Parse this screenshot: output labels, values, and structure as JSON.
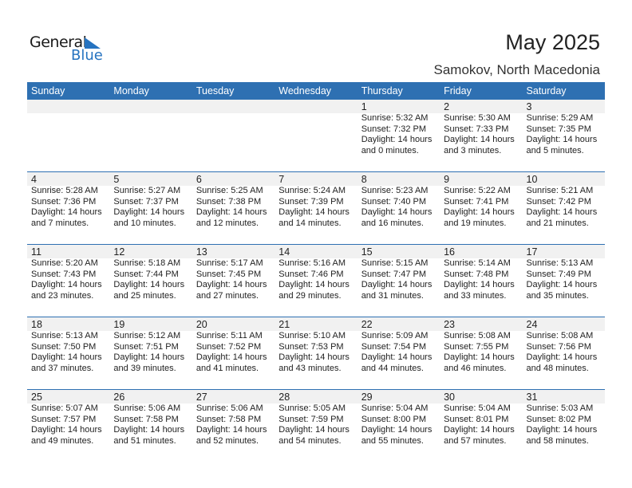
{
  "logo": {
    "general": "General",
    "blue": "Blue"
  },
  "header": {
    "title": "May 2025",
    "location": "Samokov, North Macedonia"
  },
  "colors": {
    "header_bg": "#2e70b2",
    "date_band": "#f1f1f1",
    "logo_blue": "#2673c0"
  },
  "weekdays": [
    "Sunday",
    "Monday",
    "Tuesday",
    "Wednesday",
    "Thursday",
    "Friday",
    "Saturday"
  ],
  "weeks": [
    [
      null,
      null,
      null,
      null,
      {
        "day": "1",
        "sunrise": "Sunrise: 5:32 AM",
        "sunset": "Sunset: 7:32 PM",
        "daylight": "Daylight: 14 hours",
        "minutes": "and 0 minutes."
      },
      {
        "day": "2",
        "sunrise": "Sunrise: 5:30 AM",
        "sunset": "Sunset: 7:33 PM",
        "daylight": "Daylight: 14 hours",
        "minutes": "and 3 minutes."
      },
      {
        "day": "3",
        "sunrise": "Sunrise: 5:29 AM",
        "sunset": "Sunset: 7:35 PM",
        "daylight": "Daylight: 14 hours",
        "minutes": "and 5 minutes."
      }
    ],
    [
      {
        "day": "4",
        "sunrise": "Sunrise: 5:28 AM",
        "sunset": "Sunset: 7:36 PM",
        "daylight": "Daylight: 14 hours",
        "minutes": "and 7 minutes."
      },
      {
        "day": "5",
        "sunrise": "Sunrise: 5:27 AM",
        "sunset": "Sunset: 7:37 PM",
        "daylight": "Daylight: 14 hours",
        "minutes": "and 10 minutes."
      },
      {
        "day": "6",
        "sunrise": "Sunrise: 5:25 AM",
        "sunset": "Sunset: 7:38 PM",
        "daylight": "Daylight: 14 hours",
        "minutes": "and 12 minutes."
      },
      {
        "day": "7",
        "sunrise": "Sunrise: 5:24 AM",
        "sunset": "Sunset: 7:39 PM",
        "daylight": "Daylight: 14 hours",
        "minutes": "and 14 minutes."
      },
      {
        "day": "8",
        "sunrise": "Sunrise: 5:23 AM",
        "sunset": "Sunset: 7:40 PM",
        "daylight": "Daylight: 14 hours",
        "minutes": "and 16 minutes."
      },
      {
        "day": "9",
        "sunrise": "Sunrise: 5:22 AM",
        "sunset": "Sunset: 7:41 PM",
        "daylight": "Daylight: 14 hours",
        "minutes": "and 19 minutes."
      },
      {
        "day": "10",
        "sunrise": "Sunrise: 5:21 AM",
        "sunset": "Sunset: 7:42 PM",
        "daylight": "Daylight: 14 hours",
        "minutes": "and 21 minutes."
      }
    ],
    [
      {
        "day": "11",
        "sunrise": "Sunrise: 5:20 AM",
        "sunset": "Sunset: 7:43 PM",
        "daylight": "Daylight: 14 hours",
        "minutes": "and 23 minutes."
      },
      {
        "day": "12",
        "sunrise": "Sunrise: 5:18 AM",
        "sunset": "Sunset: 7:44 PM",
        "daylight": "Daylight: 14 hours",
        "minutes": "and 25 minutes."
      },
      {
        "day": "13",
        "sunrise": "Sunrise: 5:17 AM",
        "sunset": "Sunset: 7:45 PM",
        "daylight": "Daylight: 14 hours",
        "minutes": "and 27 minutes."
      },
      {
        "day": "14",
        "sunrise": "Sunrise: 5:16 AM",
        "sunset": "Sunset: 7:46 PM",
        "daylight": "Daylight: 14 hours",
        "minutes": "and 29 minutes."
      },
      {
        "day": "15",
        "sunrise": "Sunrise: 5:15 AM",
        "sunset": "Sunset: 7:47 PM",
        "daylight": "Daylight: 14 hours",
        "minutes": "and 31 minutes."
      },
      {
        "day": "16",
        "sunrise": "Sunrise: 5:14 AM",
        "sunset": "Sunset: 7:48 PM",
        "daylight": "Daylight: 14 hours",
        "minutes": "and 33 minutes."
      },
      {
        "day": "17",
        "sunrise": "Sunrise: 5:13 AM",
        "sunset": "Sunset: 7:49 PM",
        "daylight": "Daylight: 14 hours",
        "minutes": "and 35 minutes."
      }
    ],
    [
      {
        "day": "18",
        "sunrise": "Sunrise: 5:13 AM",
        "sunset": "Sunset: 7:50 PM",
        "daylight": "Daylight: 14 hours",
        "minutes": "and 37 minutes."
      },
      {
        "day": "19",
        "sunrise": "Sunrise: 5:12 AM",
        "sunset": "Sunset: 7:51 PM",
        "daylight": "Daylight: 14 hours",
        "minutes": "and 39 minutes."
      },
      {
        "day": "20",
        "sunrise": "Sunrise: 5:11 AM",
        "sunset": "Sunset: 7:52 PM",
        "daylight": "Daylight: 14 hours",
        "minutes": "and 41 minutes."
      },
      {
        "day": "21",
        "sunrise": "Sunrise: 5:10 AM",
        "sunset": "Sunset: 7:53 PM",
        "daylight": "Daylight: 14 hours",
        "minutes": "and 43 minutes."
      },
      {
        "day": "22",
        "sunrise": "Sunrise: 5:09 AM",
        "sunset": "Sunset: 7:54 PM",
        "daylight": "Daylight: 14 hours",
        "minutes": "and 44 minutes."
      },
      {
        "day": "23",
        "sunrise": "Sunrise: 5:08 AM",
        "sunset": "Sunset: 7:55 PM",
        "daylight": "Daylight: 14 hours",
        "minutes": "and 46 minutes."
      },
      {
        "day": "24",
        "sunrise": "Sunrise: 5:08 AM",
        "sunset": "Sunset: 7:56 PM",
        "daylight": "Daylight: 14 hours",
        "minutes": "and 48 minutes."
      }
    ],
    [
      {
        "day": "25",
        "sunrise": "Sunrise: 5:07 AM",
        "sunset": "Sunset: 7:57 PM",
        "daylight": "Daylight: 14 hours",
        "minutes": "and 49 minutes."
      },
      {
        "day": "26",
        "sunrise": "Sunrise: 5:06 AM",
        "sunset": "Sunset: 7:58 PM",
        "daylight": "Daylight: 14 hours",
        "minutes": "and 51 minutes."
      },
      {
        "day": "27",
        "sunrise": "Sunrise: 5:06 AM",
        "sunset": "Sunset: 7:58 PM",
        "daylight": "Daylight: 14 hours",
        "minutes": "and 52 minutes."
      },
      {
        "day": "28",
        "sunrise": "Sunrise: 5:05 AM",
        "sunset": "Sunset: 7:59 PM",
        "daylight": "Daylight: 14 hours",
        "minutes": "and 54 minutes."
      },
      {
        "day": "29",
        "sunrise": "Sunrise: 5:04 AM",
        "sunset": "Sunset: 8:00 PM",
        "daylight": "Daylight: 14 hours",
        "minutes": "and 55 minutes."
      },
      {
        "day": "30",
        "sunrise": "Sunrise: 5:04 AM",
        "sunset": "Sunset: 8:01 PM",
        "daylight": "Daylight: 14 hours",
        "minutes": "and 57 minutes."
      },
      {
        "day": "31",
        "sunrise": "Sunrise: 5:03 AM",
        "sunset": "Sunset: 8:02 PM",
        "daylight": "Daylight: 14 hours",
        "minutes": "and 58 minutes."
      }
    ]
  ]
}
